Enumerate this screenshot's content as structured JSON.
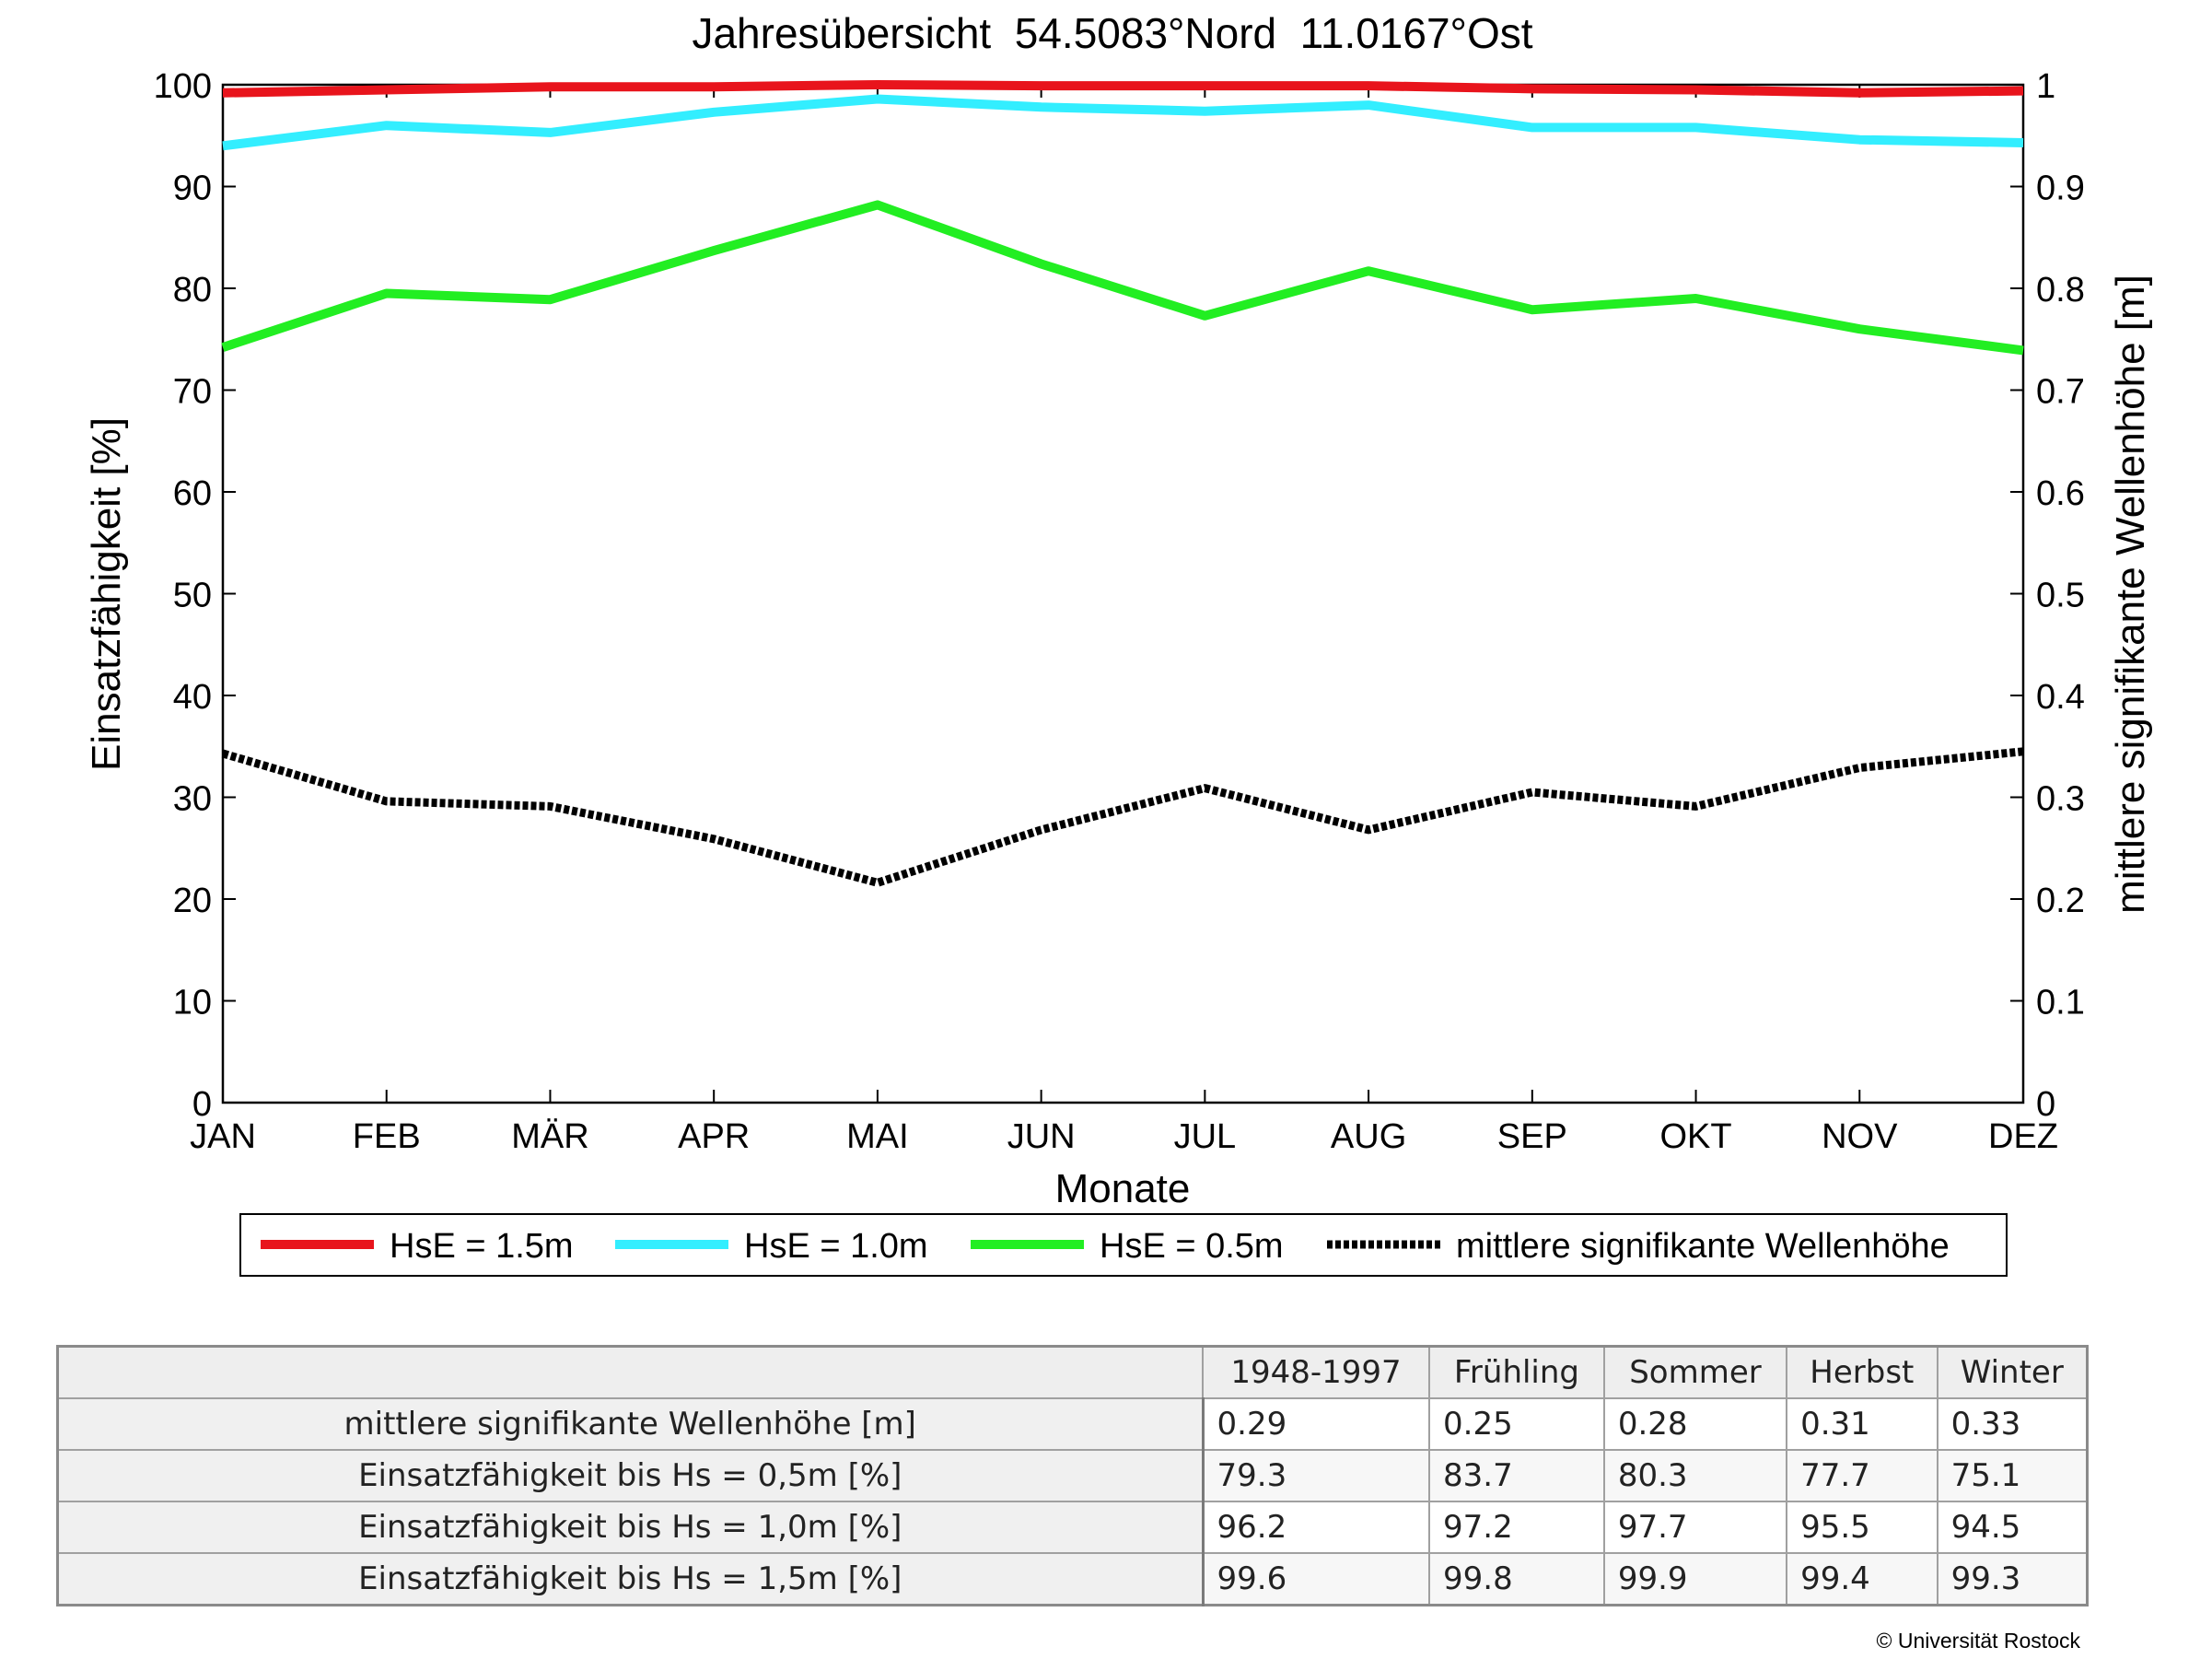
{
  "chart_data": {
    "type": "line",
    "title": "Jahresübersicht  54.5083°Nord  11.0167°Ost",
    "xlabel": "Monate",
    "ylabel": "Einsatzfähigkeit [%]",
    "ylabel_right": "mittlere signifikante Wellenhöhe [m]",
    "categories": [
      "JAN",
      "FEB",
      "MÄR",
      "APR",
      "MAI",
      "JUN",
      "JUL",
      "AUG",
      "SEP",
      "OKT",
      "NOV",
      "DEZ"
    ],
    "ylim": [
      0,
      100
    ],
    "ylim_right": [
      0,
      1
    ],
    "yticks": [
      "0",
      "10",
      "20",
      "30",
      "40",
      "50",
      "60",
      "70",
      "80",
      "90",
      "100"
    ],
    "yticks_right": [
      "0",
      "0.1",
      "0.2",
      "0.3",
      "0.4",
      "0.5",
      "0.6",
      "0.7",
      "0.8",
      "0.9",
      "1"
    ],
    "grid": false,
    "legend_position": "bottom",
    "series": [
      {
        "name": "HsE = 1.5m",
        "axis": "left",
        "color": "#e8141c",
        "values": [
          99.2,
          99.5,
          99.8,
          99.8,
          100.0,
          99.9,
          99.9,
          99.9,
          99.6,
          99.5,
          99.2,
          99.4
        ]
      },
      {
        "name": "HsE = 1.0m",
        "axis": "left",
        "color": "#33eeff",
        "values": [
          94.0,
          96.0,
          95.3,
          97.3,
          98.6,
          97.8,
          97.4,
          98.0,
          95.8,
          95.8,
          94.6,
          94.3
        ]
      },
      {
        "name": "HsE = 0.5m",
        "axis": "left",
        "color": "#22ee22",
        "values": [
          74.2,
          79.5,
          78.9,
          83.7,
          88.2,
          82.4,
          77.3,
          81.7,
          77.9,
          79.0,
          76.0,
          73.9
        ]
      },
      {
        "name": "mittlere signifikante Wellenhöhe",
        "axis": "right",
        "color": "#000000",
        "dashed": true,
        "values": [
          0.343,
          0.296,
          0.291,
          0.259,
          0.216,
          0.268,
          0.309,
          0.268,
          0.305,
          0.291,
          0.329,
          0.345
        ]
      }
    ]
  },
  "table": {
    "headers": [
      "1948-1997",
      "Frühling",
      "Sommer",
      "Herbst",
      "Winter"
    ],
    "rows": [
      {
        "label": "mittlere signifikante Wellenhöhe [m]",
        "values": [
          "0.29",
          "0.25",
          "0.28",
          "0.31",
          "0.33"
        ]
      },
      {
        "label": "Einsatzfähigkeit bis Hs = 0,5m [%]",
        "values": [
          "79.3",
          "83.7",
          "80.3",
          "77.7",
          "75.1"
        ]
      },
      {
        "label": "Einsatzfähigkeit bis Hs = 1,0m [%]",
        "values": [
          "96.2",
          "97.2",
          "97.7",
          "95.5",
          "94.5"
        ]
      },
      {
        "label": "Einsatzfähigkeit bis Hs = 1,5m [%]",
        "values": [
          "99.6",
          "99.8",
          "99.9",
          "99.4",
          "99.3"
        ]
      }
    ]
  },
  "copyright": "© Universität Rostock"
}
